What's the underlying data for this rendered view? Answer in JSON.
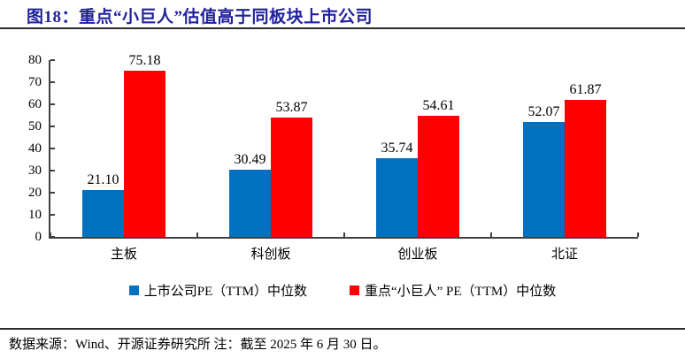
{
  "title": "图18：重点“小巨人”估值高于同板块上市公司",
  "colors": {
    "title": "#21219C",
    "series_blue": "#0070C0",
    "series_red": "#FF0000",
    "axis": "#404040",
    "rule": "#2B2B2B",
    "text": "#000000"
  },
  "legend": {
    "item1": "上市公司PE（TTM）中位数",
    "item2": "重点“小巨人” PE（TTM）中位数"
  },
  "footer": {
    "text": "数据来源：Wind、开源证券研究所 注：截至 2025 年 6 月 30 日。"
  },
  "chart_data": {
    "type": "bar",
    "categories": [
      "主板",
      "科创板",
      "创业板",
      "北证"
    ],
    "series": [
      {
        "name": "上市公司PE（TTM）中位数",
        "color_key": "series_blue",
        "values": [
          21.1,
          30.49,
          35.74,
          52.07
        ]
      },
      {
        "name": "重点“小巨人” PE（TTM）中位数",
        "color_key": "series_red",
        "values": [
          75.18,
          53.87,
          54.61,
          61.87
        ]
      }
    ],
    "ylim": [
      0,
      80
    ],
    "ytick_step": 10,
    "grid": false,
    "legend_position": "bottom",
    "value_labels": true,
    "value_label_decimals": 2
  }
}
